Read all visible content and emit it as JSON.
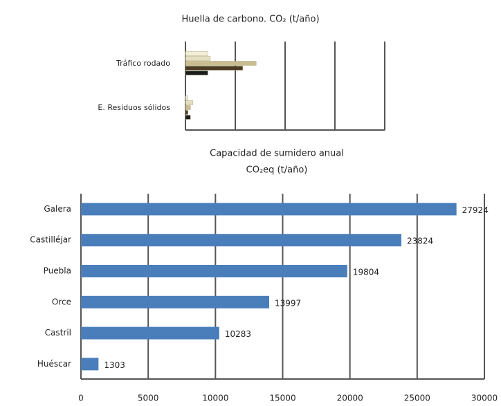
{
  "chart_data": [
    {
      "type": "hbar-grouped",
      "title": "Huella de carbono. CO₂ (t/año)",
      "categories": [
        "Tráfico rodado",
        "E. Residuos sólidos"
      ],
      "series": [
        {
          "color": "#f3eed8",
          "values": [
            0.45,
            0.05
          ]
        },
        {
          "color": "#e6dfbf",
          "values": [
            0.5,
            0.15
          ]
        },
        {
          "color": "#c9bd8e",
          "values": [
            1.42,
            0.1
          ]
        },
        {
          "color": "#4a3b22",
          "values": [
            1.15,
            0.05
          ]
        },
        {
          "color": "#1b1b1b",
          "values": [
            0.45,
            0.1
          ]
        }
      ],
      "xlim": [
        0,
        4
      ],
      "xticks": [
        0,
        1,
        2,
        3,
        4
      ],
      "tick_labels": false,
      "grid": true
    },
    {
      "type": "hbar",
      "title": [
        "Capacidad de sumidero anual",
        "CO₂eq (t/año)"
      ],
      "categories": [
        "Galera",
        "Castilléjar",
        "Puebla",
        "Orce",
        "Castril",
        "Huéscar"
      ],
      "values": [
        27924,
        23824,
        19804,
        13997,
        10283,
        1303
      ],
      "color": "#4a7ebb",
      "xlim": [
        0,
        30000
      ],
      "xticks": [
        0,
        5000,
        10000,
        15000,
        20000,
        25000,
        30000
      ],
      "tick_labels": true,
      "grid": true
    }
  ]
}
